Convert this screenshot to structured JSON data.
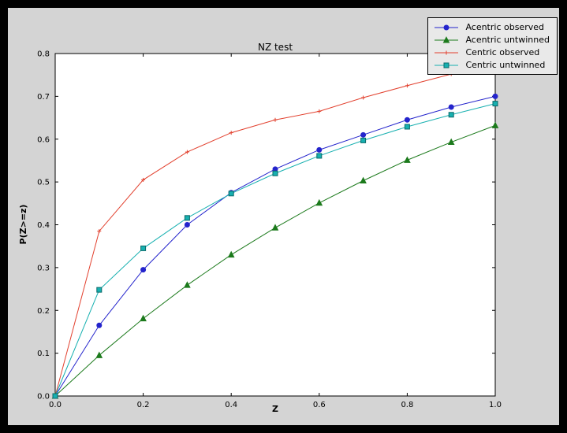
{
  "chart_data": {
    "type": "line",
    "title": "NZ test",
    "xlabel": "Z",
    "ylabel": "P(Z>=z)",
    "xlim": [
      0.0,
      1.0
    ],
    "ylim": [
      0.0,
      0.8
    ],
    "xticks": [
      0.0,
      0.2,
      0.4,
      0.6,
      0.8,
      1.0
    ],
    "yticks": [
      0.0,
      0.1,
      0.2,
      0.3,
      0.4,
      0.5,
      0.6,
      0.7,
      0.8
    ],
    "grid": false,
    "legend_position": "upper right outside plot",
    "x": [
      0.0,
      0.1,
      0.2,
      0.3,
      0.4,
      0.5,
      0.6,
      0.7,
      0.8,
      0.9,
      1.0
    ],
    "series": [
      {
        "name": "Acentric observed",
        "color": "#2424cc",
        "marker": "circle",
        "values": [
          0.0,
          0.165,
          0.295,
          0.4,
          0.475,
          0.53,
          0.575,
          0.61,
          0.645,
          0.675,
          0.7
        ]
      },
      {
        "name": "Acentric untwinned",
        "color": "#1c7a1c",
        "marker": "triangle",
        "values": [
          0.0,
          0.095,
          0.181,
          0.259,
          0.33,
          0.393,
          0.451,
          0.503,
          0.551,
          0.593,
          0.632
        ]
      },
      {
        "name": "Centric observed",
        "color": "#e2402e",
        "marker": "plus",
        "values": [
          0.0,
          0.385,
          0.505,
          0.57,
          0.615,
          0.645,
          0.665,
          0.697,
          0.725,
          0.752,
          0.775
        ]
      },
      {
        "name": "Centric untwinned",
        "color": "#17b0b0",
        "marker": "square",
        "values": [
          0.0,
          0.248,
          0.345,
          0.416,
          0.473,
          0.52,
          0.561,
          0.597,
          0.629,
          0.657,
          0.683
        ]
      }
    ]
  }
}
